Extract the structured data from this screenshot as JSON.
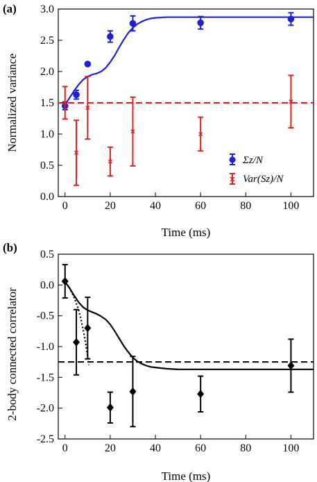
{
  "chart_data": [
    {
      "panel": "(a)",
      "type": "scatter",
      "xlabel": "Time (ms)",
      "ylabel": "Normalized variance",
      "xlim": [
        -3,
        110
      ],
      "ylim": [
        0.0,
        3.0
      ],
      "xticks": [
        "0",
        "20",
        "40",
        "60",
        "80",
        "100"
      ],
      "yticks": [
        "0.0",
        "0.5",
        "1.0",
        "1.5",
        "2.0",
        "2.5",
        "3.0"
      ],
      "legend_position": "lower-right",
      "series": [
        {
          "name": "Σ_z/N",
          "legend_label": "Σz/N",
          "color": "#1f1fd6",
          "marker": "circle",
          "x": [
            0,
            5,
            10,
            20,
            30,
            60,
            100
          ],
          "y": [
            1.45,
            1.63,
            2.12,
            2.56,
            2.77,
            2.78,
            2.84
          ],
          "yerr": [
            0.06,
            0.07,
            0.0,
            0.09,
            0.12,
            0.1,
            0.1
          ]
        },
        {
          "name": "Var(S_z)/N",
          "legend_label": "Var(Sz)/N",
          "color": "#e02020",
          "marker": "cross",
          "x": [
            0,
            5,
            10,
            20,
            30,
            60,
            100
          ],
          "y": [
            1.5,
            0.7,
            1.42,
            0.56,
            1.04,
            1.0,
            1.52
          ],
          "yerr": [
            0.26,
            0.52,
            0.5,
            0.23,
            0.55,
            0.27,
            0.42
          ]
        }
      ],
      "fit_curve": {
        "color": "#1f1fd6",
        "x": [
          0,
          2,
          4,
          6,
          8,
          10,
          12,
          14,
          16,
          18,
          20,
          22,
          24,
          26,
          28,
          30,
          32,
          34,
          36,
          38,
          40,
          45,
          50,
          60,
          70,
          80,
          90,
          100,
          110
        ],
        "y": [
          1.47,
          1.58,
          1.69,
          1.79,
          1.87,
          1.92,
          1.95,
          1.97,
          2.0,
          2.06,
          2.15,
          2.26,
          2.39,
          2.51,
          2.62,
          2.7,
          2.76,
          2.8,
          2.83,
          2.85,
          2.86,
          2.87,
          2.87,
          2.87,
          2.87,
          2.87,
          2.87,
          2.87,
          2.87
        ]
      },
      "reference_line": {
        "y": 1.5,
        "color": "#e02020",
        "style": "dashed"
      }
    },
    {
      "panel": "(b)",
      "type": "scatter",
      "xlabel": "Time (ms)",
      "ylabel": "2-body connected correlator",
      "xlim": [
        -3,
        110
      ],
      "ylim": [
        -2.5,
        0.5
      ],
      "xticks": [
        "0",
        "20",
        "40",
        "60",
        "80",
        "100"
      ],
      "yticks": [
        "0.5",
        "0.0",
        "-0.5",
        "-1.0",
        "-1.5",
        "-2.0",
        "-2.5"
      ],
      "series": [
        {
          "name": "",
          "color": "#000000",
          "marker": "diamond",
          "x": [
            0,
            5,
            10,
            20,
            30,
            60,
            100
          ],
          "y": [
            0.06,
            -0.93,
            -0.7,
            -1.99,
            -1.73,
            -1.77,
            -1.31
          ],
          "yerr": [
            0.27,
            0.53,
            0.5,
            0.25,
            0.57,
            0.29,
            0.43
          ]
        }
      ],
      "fit_curve": {
        "color": "#000000",
        "x": [
          0,
          2,
          4,
          6,
          8,
          10,
          12,
          14,
          16,
          18,
          20,
          22,
          24,
          26,
          28,
          30,
          32,
          34,
          36,
          38,
          40,
          45,
          50,
          60,
          70,
          80,
          90,
          100,
          110
        ],
        "y": [
          0.05,
          -0.05,
          -0.17,
          -0.28,
          -0.36,
          -0.41,
          -0.44,
          -0.47,
          -0.51,
          -0.56,
          -0.64,
          -0.75,
          -0.87,
          -0.99,
          -1.09,
          -1.18,
          -1.24,
          -1.28,
          -1.31,
          -1.33,
          -1.34,
          -1.36,
          -1.37,
          -1.37,
          -1.37,
          -1.37,
          -1.37,
          -1.37,
          -1.37
        ]
      },
      "dotted_curve": {
        "color": "#000000",
        "x": [
          0,
          2,
          4,
          6,
          7,
          8,
          9,
          10,
          10.5
        ],
        "y": [
          0.05,
          -0.05,
          -0.2,
          -0.4,
          -0.55,
          -0.72,
          -0.92,
          -1.15,
          -1.3
        ]
      },
      "reference_line": {
        "y": -1.25,
        "color": "#000000",
        "style": "dashed"
      }
    }
  ]
}
